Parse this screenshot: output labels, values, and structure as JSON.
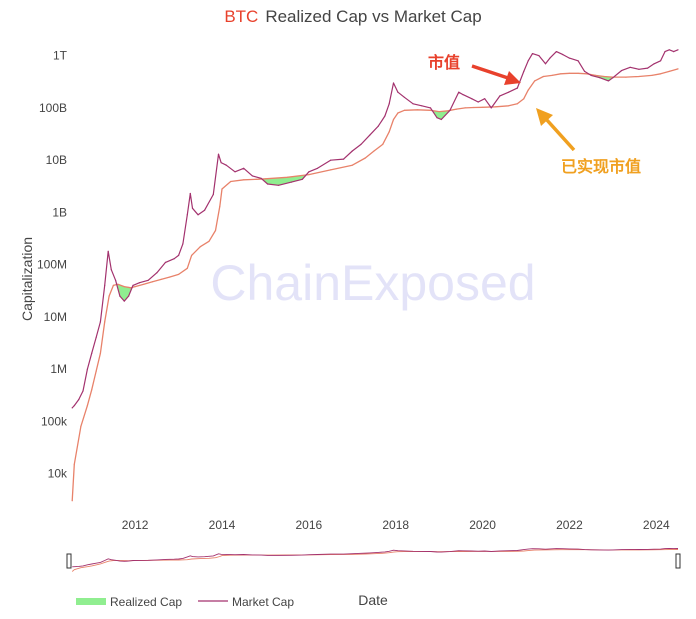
{
  "chart_data": {
    "type": "line",
    "title": {
      "prefix": "BTC",
      "text": "Realized Cap vs Market Cap",
      "prefix_color": "#e8412c",
      "color": "#444444"
    },
    "xlabel": "Date",
    "ylabel": "Capitalization",
    "yscale": "log",
    "ylim": [
      2000,
      2000000000000
    ],
    "xlim": [
      2010.5,
      2024.5
    ],
    "x_ticks": [
      2012,
      2014,
      2016,
      2018,
      2020,
      2022,
      2024
    ],
    "x_tick_labels": [
      "2012",
      "2014",
      "2016",
      "2018",
      "2020",
      "2022",
      "2024"
    ],
    "y_ticks": [
      10000,
      100000,
      1000000,
      10000000,
      100000000,
      1000000000,
      10000000000,
      100000000000,
      1000000000000
    ],
    "y_tick_labels": [
      "10k",
      "100k",
      "1M",
      "10M",
      "100M",
      "1B",
      "10B",
      "100B",
      "1T"
    ],
    "grid": false,
    "legend_position": "bottom",
    "watermark": "ChainExposed",
    "series": [
      {
        "name": "Realized Cap",
        "legend_color": "#90ee90",
        "color": "#e8826a",
        "x": [
          2010.55,
          2010.6,
          2010.75,
          2010.9,
          2011.0,
          2011.1,
          2011.2,
          2011.3,
          2011.4,
          2011.5,
          2011.6,
          2011.75,
          2011.9,
          2012.0,
          2012.2,
          2012.4,
          2012.6,
          2012.8,
          2013.0,
          2013.2,
          2013.3,
          2013.5,
          2013.7,
          2013.85,
          2013.95,
          2014.0,
          2014.2,
          2014.5,
          2014.8,
          2015.0,
          2015.5,
          2016.0,
          2016.5,
          2017.0,
          2017.3,
          2017.5,
          2017.7,
          2017.85,
          2017.95,
          2018.05,
          2018.2,
          2018.5,
          2018.8,
          2019.0,
          2019.2,
          2019.4,
          2019.6,
          2019.8,
          2020.0,
          2020.3,
          2020.6,
          2020.8,
          2020.95,
          2021.05,
          2021.2,
          2021.4,
          2021.6,
          2021.8,
          2022.0,
          2022.2,
          2022.4,
          2022.6,
          2022.8,
          2023.0,
          2023.3,
          2023.6,
          2023.9,
          2024.1,
          2024.3,
          2024.5
        ],
        "values": [
          3000,
          15000,
          80000,
          200000,
          400000,
          900000,
          2000000,
          8000000,
          25000000,
          40000000,
          42000000,
          38000000,
          36000000,
          38000000,
          42000000,
          47000000,
          52000000,
          58000000,
          65000000,
          85000000,
          150000000,
          220000000,
          280000000,
          450000000,
          1300000000,
          2800000000,
          3900000000,
          4200000000,
          4300000000,
          4400000000,
          4700000000,
          5300000000,
          6500000000,
          8000000000,
          11000000000,
          15000000000,
          20000000000,
          35000000000,
          60000000000,
          80000000000,
          90000000000,
          92000000000,
          90000000000,
          85000000000,
          88000000000,
          95000000000,
          100000000000,
          102000000000,
          103000000000,
          105000000000,
          110000000000,
          120000000000,
          150000000000,
          220000000000,
          330000000000,
          400000000000,
          420000000000,
          450000000000,
          460000000000,
          460000000000,
          450000000000,
          420000000000,
          400000000000,
          390000000000,
          390000000000,
          400000000000,
          420000000000,
          450000000000,
          500000000000,
          560000000000
        ]
      },
      {
        "name": "Market Cap",
        "legend_color": "#a3326e",
        "color": "#a3326e",
        "x": [
          2010.55,
          2010.6,
          2010.7,
          2010.8,
          2010.9,
          2011.0,
          2011.1,
          2011.2,
          2011.3,
          2011.38,
          2011.45,
          2011.55,
          2011.65,
          2011.75,
          2011.85,
          2011.95,
          2012.1,
          2012.3,
          2012.5,
          2012.7,
          2012.9,
          2013.0,
          2013.1,
          2013.2,
          2013.27,
          2013.32,
          2013.45,
          2013.6,
          2013.8,
          2013.92,
          2013.98,
          2014.1,
          2014.3,
          2014.5,
          2014.7,
          2014.9,
          2015.05,
          2015.3,
          2015.6,
          2015.85,
          2016.0,
          2016.2,
          2016.5,
          2016.8,
          2017.0,
          2017.2,
          2017.4,
          2017.6,
          2017.75,
          2017.85,
          2017.95,
          2018.05,
          2018.2,
          2018.4,
          2018.6,
          2018.8,
          2018.95,
          2019.05,
          2019.25,
          2019.45,
          2019.55,
          2019.75,
          2019.9,
          2020.05,
          2020.2,
          2020.4,
          2020.6,
          2020.8,
          2020.95,
          2021.05,
          2021.15,
          2021.3,
          2021.45,
          2021.55,
          2021.7,
          2021.85,
          2022.0,
          2022.2,
          2022.35,
          2022.5,
          2022.7,
          2022.9,
          2023.0,
          2023.2,
          2023.4,
          2023.6,
          2023.8,
          2023.95,
          2024.1,
          2024.2,
          2024.3,
          2024.4,
          2024.5
        ],
        "values": [
          180000,
          200000,
          260000,
          380000,
          1000000,
          2000000,
          4000000,
          8000000,
          40000000,
          180000000,
          80000000,
          50000000,
          25000000,
          20000000,
          25000000,
          40000000,
          45000000,
          50000000,
          70000000,
          110000000,
          130000000,
          150000000,
          250000000,
          900000000,
          2300000000,
          1200000000,
          900000000,
          1100000000,
          2200000000,
          13000000000,
          9000000000,
          8000000000,
          6000000000,
          7000000000,
          5000000000,
          4500000000,
          3500000000,
          3300000000,
          3800000000,
          4300000000,
          6000000000,
          7000000000,
          10000000000,
          10500000000,
          15000000000,
          20000000000,
          30000000000,
          45000000000,
          70000000000,
          120000000000,
          300000000000,
          200000000000,
          160000000000,
          120000000000,
          110000000000,
          100000000000,
          65000000000,
          60000000000,
          90000000000,
          200000000000,
          180000000000,
          150000000000,
          130000000000,
          150000000000,
          100000000000,
          170000000000,
          200000000000,
          240000000000,
          500000000000,
          800000000000,
          1100000000000,
          1000000000000,
          700000000000,
          900000000000,
          1200000000000,
          1050000000000,
          900000000000,
          800000000000,
          500000000000,
          420000000000,
          380000000000,
          330000000000,
          380000000000,
          520000000000,
          600000000000,
          550000000000,
          580000000000,
          700000000000,
          800000000000,
          1200000000000,
          1300000000000,
          1200000000000,
          1300000000000
        ]
      }
    ],
    "annotations": [
      {
        "text": "市值",
        "color": "#e8412c"
      },
      {
        "text": "已实现市值",
        "color": "#f0a020"
      }
    ]
  }
}
